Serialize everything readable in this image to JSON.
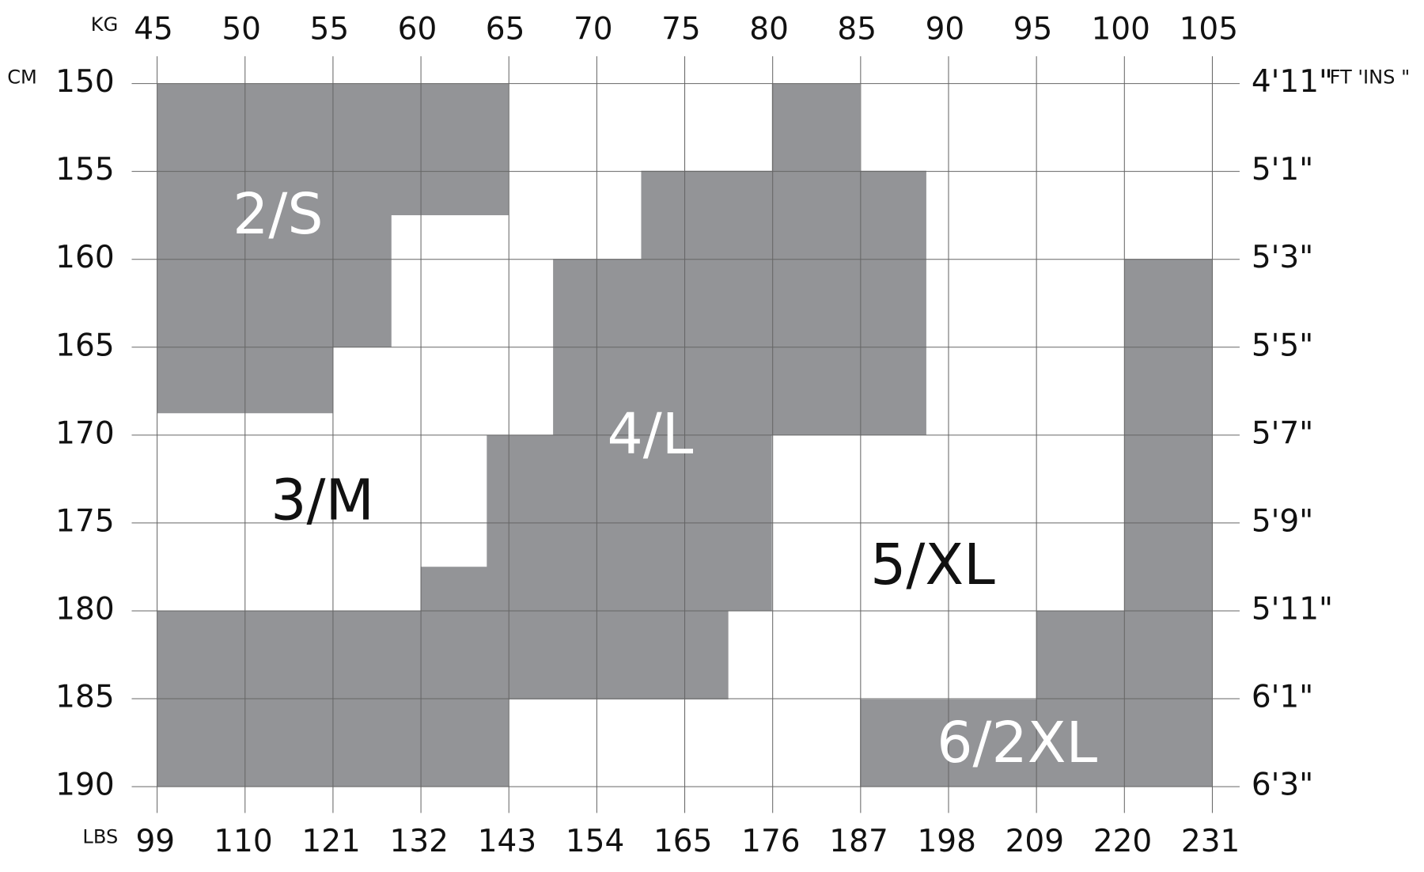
{
  "units": {
    "kg": "KG",
    "cm": "CM",
    "lbs": "LBS",
    "ft_in": "FT 'INS \""
  },
  "kg": [
    45,
    50,
    55,
    60,
    65,
    70,
    75,
    80,
    85,
    90,
    95,
    100,
    105
  ],
  "lbs": [
    99,
    110,
    121,
    132,
    143,
    154,
    165,
    176,
    187,
    198,
    209,
    220,
    231
  ],
  "cm": [
    150,
    155,
    160,
    165,
    170,
    175,
    180,
    185,
    190
  ],
  "ft_in": [
    "4'11\"",
    "5'1\"",
    "5'3\"",
    "5'5\"",
    "5'7\"",
    "5'9\"",
    "5'11\"",
    "6'1\"",
    "6'3\""
  ],
  "sizes": [
    "2/S",
    "3/M",
    "4/L",
    "5/XL",
    "6/2XL"
  ]
}
